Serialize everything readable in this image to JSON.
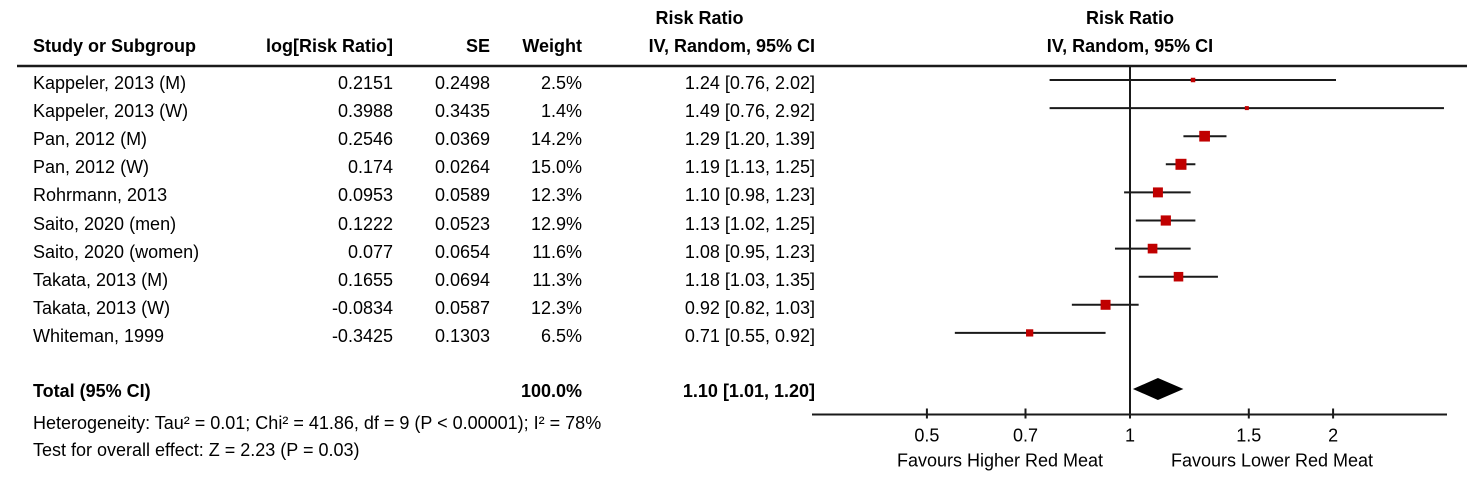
{
  "table": {
    "headers": {
      "study": "Study or Subgroup",
      "log_rr": "log[Risk Ratio]",
      "se": "SE",
      "weight": "Weight",
      "effect_top": "Risk Ratio",
      "effect": "IV, Random, 95% CI"
    }
  },
  "plot": {
    "header_top": "Risk Ratio",
    "header_sub": "IV, Random, 95% CI"
  },
  "chart_data": {
    "type": "scatter",
    "subtype": "forest_plot_meta_analysis",
    "effect_measure": "Risk Ratio",
    "model": "IV, Random",
    "ci_level": "95% CI",
    "x_scale": "log",
    "x_axis_range": [
      0.34,
      2.95
    ],
    "x_ticks": [
      {
        "value": 0.5,
        "label": "0.5"
      },
      {
        "value": 0.7,
        "label": "0.7"
      },
      {
        "value": 1,
        "label": "1"
      },
      {
        "value": 1.5,
        "label": "1.5"
      },
      {
        "value": 2,
        "label": "2"
      }
    ],
    "studies": [
      {
        "label": "Kappeler, 2013 (M)",
        "log_rr": "0.2151",
        "se": "0.2498",
        "weight_text": "2.5%",
        "weight": 2.5,
        "ci_text": "1.24 [0.76, 2.02]",
        "rr": 1.24,
        "lo": 0.76,
        "hi": 2.02
      },
      {
        "label": "Kappeler, 2013 (W)",
        "log_rr": "0.3988",
        "se": "0.3435",
        "weight_text": "1.4%",
        "weight": 1.4,
        "ci_text": "1.49 [0.76, 2.92]",
        "rr": 1.49,
        "lo": 0.76,
        "hi": 2.92
      },
      {
        "label": "Pan, 2012 (M)",
        "log_rr": "0.2546",
        "se": "0.0369",
        "weight_text": "14.2%",
        "weight": 14.2,
        "ci_text": "1.29 [1.20, 1.39]",
        "rr": 1.29,
        "lo": 1.2,
        "hi": 1.39
      },
      {
        "label": "Pan, 2012 (W)",
        "log_rr": "0.174",
        "se": "0.0264",
        "weight_text": "15.0%",
        "weight": 15.0,
        "ci_text": "1.19 [1.13, 1.25]",
        "rr": 1.19,
        "lo": 1.13,
        "hi": 1.25
      },
      {
        "label": "Rohrmann, 2013",
        "log_rr": "0.0953",
        "se": "0.0589",
        "weight_text": "12.3%",
        "weight": 12.3,
        "ci_text": "1.10 [0.98, 1.23]",
        "rr": 1.1,
        "lo": 0.98,
        "hi": 1.23
      },
      {
        "label": "Saito, 2020 (men)",
        "log_rr": "0.1222",
        "se": "0.0523",
        "weight_text": "12.9%",
        "weight": 12.9,
        "ci_text": "1.13 [1.02, 1.25]",
        "rr": 1.13,
        "lo": 1.02,
        "hi": 1.25
      },
      {
        "label": "Saito, 2020 (women)",
        "log_rr": "0.077",
        "se": "0.0654",
        "weight_text": "11.6%",
        "weight": 11.6,
        "ci_text": "1.08 [0.95, 1.23]",
        "rr": 1.08,
        "lo": 0.95,
        "hi": 1.23
      },
      {
        "label": "Takata, 2013 (M)",
        "log_rr": "0.1655",
        "se": "0.0694",
        "weight_text": "11.3%",
        "weight": 11.3,
        "ci_text": "1.18 [1.03, 1.35]",
        "rr": 1.18,
        "lo": 1.03,
        "hi": 1.35
      },
      {
        "label": "Takata, 2013 (W)",
        "log_rr": "-0.0834",
        "se": "0.0587",
        "weight_text": "12.3%",
        "weight": 12.3,
        "ci_text": "0.92 [0.82, 1.03]",
        "rr": 0.92,
        "lo": 0.82,
        "hi": 1.03
      },
      {
        "label": "Whiteman, 1999",
        "log_rr": "-0.3425",
        "se": "0.1303",
        "weight_text": "6.5%",
        "weight": 6.5,
        "ci_text": "0.71 [0.55, 0.92]",
        "rr": 0.71,
        "lo": 0.55,
        "hi": 0.92
      }
    ],
    "total": {
      "label": "Total (95% CI)",
      "weight_text": "100.0%",
      "weight": 100.0,
      "ci_text": "1.10 [1.01, 1.20]",
      "rr": 1.1,
      "lo": 1.01,
      "hi": 1.2
    },
    "heterogeneity_text": "Heterogeneity: Tau² = 0.01; Chi² = 41.86, df = 9 (P < 0.00001); I² = 78%",
    "overall_effect_text": "Test for overall effect: Z = 2.23 (P = 0.03)",
    "favours_left": "Favours Higher Red Meat",
    "favours_right": "Favours Lower Red Meat",
    "colors": {
      "marker": "#C00000",
      "summary": "#000000",
      "line": "#1a1a1a"
    }
  }
}
